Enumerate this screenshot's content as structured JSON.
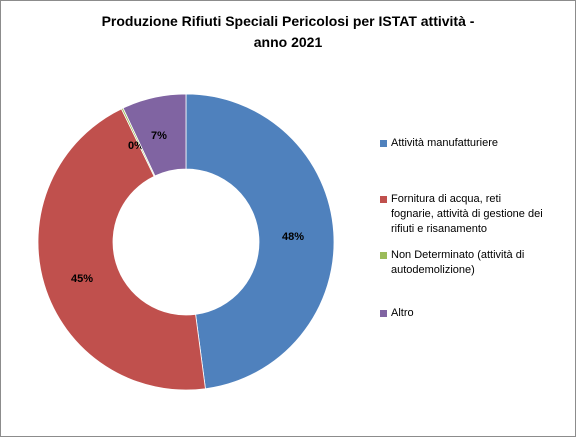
{
  "chart_data": {
    "type": "pie",
    "style": "donut",
    "title": "Produzione Rifiuti Speciali Pericolosi per ISTAT attività -",
    "subtitle": "anno 2021",
    "categories": [
      "Attività manufatturiere",
      "Fornitura di acqua, reti fognarie, attività di gestione dei rifiuti e risanamento",
      "Non Determinato (attività di autodemolizione)",
      "Altro"
    ],
    "legend_lines": [
      [
        "Attività manufatturiere"
      ],
      [
        "Fornitura di acqua, reti",
        "fognarie, attività di gestione dei",
        "rifiuti e risanamento"
      ],
      [
        "Non Determinato (attività di",
        "autodemolizione)"
      ],
      [
        "Altro"
      ]
    ],
    "values": [
      48,
      45,
      0.2,
      7
    ],
    "data_labels": [
      "48%",
      "45%",
      "0%",
      "7%"
    ],
    "colors": [
      "#4f81bd",
      "#c0504d",
      "#9bbb59",
      "#8064a2"
    ],
    "legend_position": "right"
  }
}
